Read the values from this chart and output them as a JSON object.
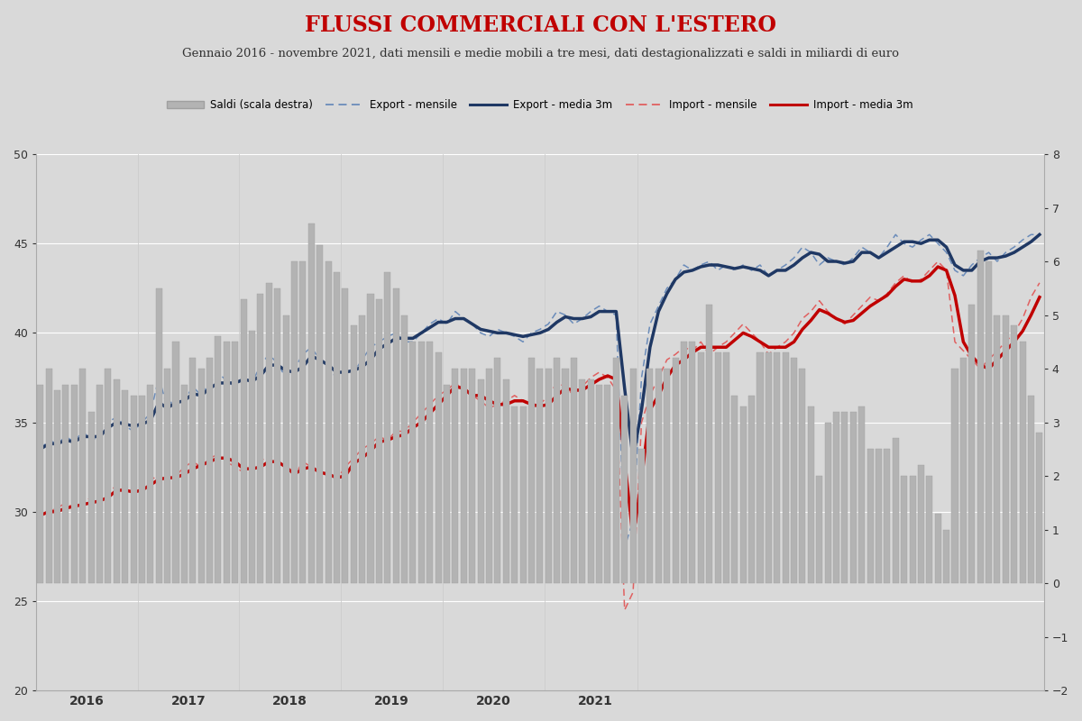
{
  "title": "FLUSSI COMMERCIALI CON L'ESTERO",
  "subtitle": "Gennaio 2016 - novembre 2021, dati mensili e medie mobili a tre mesi, dati destagionalizzati e saldi in miliardi di euro",
  "background_color": "#d9d9d9",
  "plot_bg_color": "#d9d9d9",
  "left_ylim": [
    20,
    50
  ],
  "right_ylim": [
    -2,
    8
  ],
  "left_yticks": [
    20,
    25,
    30,
    35,
    40,
    45,
    50
  ],
  "right_yticks": [
    -2,
    -1,
    0,
    1,
    2,
    3,
    4,
    5,
    6,
    7,
    8
  ],
  "export_mensile": [
    33.5,
    34.0,
    33.8,
    34.2,
    33.9,
    34.5,
    34.0,
    34.2,
    35.0,
    35.3,
    34.8,
    34.5,
    35.0,
    35.5,
    37.5,
    35.8,
    36.5,
    36.2,
    37.0,
    36.5,
    37.2,
    37.8,
    37.3,
    37.0,
    37.5,
    37.2,
    38.2,
    38.8,
    38.3,
    37.5,
    38.0,
    38.8,
    39.2,
    38.5,
    38.0,
    37.5,
    38.0,
    37.8,
    38.5,
    39.2,
    39.5,
    39.8,
    40.0,
    39.5,
    39.5,
    40.0,
    40.5,
    40.8,
    40.5,
    41.2,
    40.8,
    40.5,
    40.0,
    39.8,
    40.2,
    40.0,
    39.8,
    39.5,
    40.0,
    40.2,
    40.5,
    41.2,
    41.0,
    40.5,
    40.8,
    41.2,
    41.5,
    41.2,
    41.0,
    28.0,
    29.5,
    37.5,
    40.5,
    41.5,
    42.5,
    43.0,
    43.8,
    43.5,
    43.8,
    44.0,
    43.5,
    43.8,
    43.5,
    43.8,
    43.5,
    43.8,
    43.2,
    43.5,
    43.8,
    44.2,
    44.8,
    44.5,
    43.8,
    44.2,
    44.0,
    43.8,
    44.2,
    44.8,
    44.5,
    44.2,
    44.8,
    45.5,
    45.0,
    44.8,
    45.2,
    45.5,
    45.0,
    44.5,
    43.5,
    43.2,
    43.8,
    44.2,
    44.5,
    44.0,
    44.5,
    44.8,
    45.2,
    45.5,
    45.5
  ],
  "export_media3m": [
    33.5,
    33.8,
    33.8,
    34.0,
    33.9,
    34.2,
    34.2,
    34.2,
    34.7,
    35.0,
    34.9,
    34.8,
    34.9,
    35.1,
    36.1,
    35.8,
    36.1,
    36.2,
    36.6,
    36.5,
    36.9,
    37.2,
    37.2,
    37.2,
    37.4,
    37.3,
    37.6,
    38.2,
    38.2,
    37.9,
    37.8,
    38.1,
    38.7,
    38.5,
    38.2,
    37.8,
    37.8,
    37.9,
    38.1,
    38.5,
    39.1,
    39.4,
    39.7,
    39.7,
    39.7,
    40.0,
    40.3,
    40.6,
    40.6,
    40.8,
    40.8,
    40.5,
    40.2,
    40.1,
    40.0,
    40.0,
    39.9,
    39.8,
    39.9,
    40.0,
    40.2,
    40.6,
    40.9,
    40.8,
    40.8,
    40.9,
    41.2,
    41.2,
    41.2,
    36.9,
    33.0,
    35.7,
    39.2,
    41.2,
    42.2,
    43.0,
    43.4,
    43.5,
    43.7,
    43.8,
    43.8,
    43.7,
    43.6,
    43.7,
    43.6,
    43.5,
    43.2,
    43.5,
    43.5,
    43.8,
    44.2,
    44.5,
    44.4,
    44.0,
    44.0,
    43.9,
    44.0,
    44.5,
    44.5,
    44.2,
    44.5,
    44.8,
    45.1,
    45.1,
    45.0,
    45.2,
    45.2,
    44.8,
    43.8,
    43.5,
    43.5,
    44.0,
    44.2,
    44.2,
    44.3,
    44.5,
    44.8,
    45.1,
    45.5
  ],
  "import_mensile": [
    29.8,
    30.0,
    30.2,
    30.5,
    30.2,
    30.5,
    30.8,
    30.5,
    31.0,
    31.5,
    31.2,
    31.0,
    31.5,
    31.8,
    32.0,
    31.8,
    32.0,
    32.5,
    32.8,
    32.5,
    33.0,
    33.2,
    32.8,
    32.5,
    32.2,
    32.5,
    32.8,
    33.2,
    32.8,
    32.5,
    32.0,
    32.8,
    32.5,
    32.2,
    32.0,
    31.8,
    32.5,
    33.0,
    33.5,
    33.8,
    34.2,
    34.0,
    34.5,
    34.5,
    35.0,
    35.5,
    36.0,
    36.5,
    36.8,
    37.2,
    36.8,
    36.5,
    36.2,
    35.8,
    36.0,
    36.2,
    36.5,
    36.2,
    35.8,
    36.0,
    36.5,
    37.2,
    37.0,
    36.5,
    37.0,
    37.5,
    37.8,
    37.5,
    36.8,
    24.5,
    25.5,
    35.0,
    36.5,
    37.5,
    38.5,
    38.8,
    39.2,
    39.0,
    39.5,
    38.8,
    39.2,
    39.5,
    40.0,
    40.5,
    40.0,
    39.5,
    38.8,
    39.2,
    39.5,
    40.0,
    40.8,
    41.2,
    41.8,
    41.2,
    40.8,
    40.5,
    41.0,
    41.5,
    42.0,
    41.8,
    42.2,
    42.8,
    43.2,
    42.8,
    43.0,
    43.5,
    44.0,
    43.5,
    39.5,
    39.0,
    38.5,
    38.0,
    38.5,
    39.0,
    39.5,
    40.0,
    40.8,
    42.0,
    42.8
  ],
  "import_media3m": [
    29.8,
    30.0,
    30.0,
    30.2,
    30.3,
    30.4,
    30.5,
    30.6,
    30.8,
    31.2,
    31.2,
    31.1,
    31.2,
    31.5,
    31.8,
    31.9,
    31.9,
    32.1,
    32.4,
    32.6,
    32.8,
    33.0,
    33.0,
    32.8,
    32.4,
    32.4,
    32.5,
    32.8,
    32.8,
    32.5,
    32.1,
    32.4,
    32.5,
    32.2,
    32.1,
    31.9,
    32.0,
    32.7,
    33.0,
    33.4,
    33.9,
    34.0,
    34.2,
    34.3,
    34.7,
    35.0,
    35.5,
    36.0,
    36.5,
    37.0,
    36.9,
    36.5,
    36.5,
    36.2,
    36.0,
    36.0,
    36.2,
    36.2,
    36.0,
    35.9,
    36.0,
    36.5,
    36.9,
    36.8,
    36.8,
    37.1,
    37.4,
    37.6,
    37.4,
    32.9,
    28.5,
    31.8,
    35.7,
    36.5,
    37.5,
    38.2,
    38.5,
    38.9,
    39.2,
    39.2,
    39.2,
    39.2,
    39.6,
    40.0,
    39.8,
    39.5,
    39.2,
    39.2,
    39.2,
    39.5,
    40.2,
    40.7,
    41.3,
    41.1,
    40.8,
    40.6,
    40.7,
    41.1,
    41.5,
    41.8,
    42.1,
    42.6,
    43.0,
    42.9,
    42.9,
    43.2,
    43.7,
    43.5,
    42.1,
    39.5,
    38.7,
    38.2,
    38.0,
    38.5,
    39.0,
    39.5,
    40.1,
    41.0,
    42.0
  ],
  "saldi": [
    3.7,
    4.0,
    3.6,
    3.7,
    3.7,
    4.0,
    3.2,
    3.7,
    4.0,
    3.8,
    3.6,
    3.5,
    3.5,
    3.7,
    5.5,
    4.0,
    4.5,
    3.7,
    4.2,
    4.0,
    4.2,
    4.6,
    4.5,
    4.5,
    5.3,
    4.7,
    5.4,
    5.6,
    5.5,
    5.0,
    6.0,
    6.0,
    6.7,
    6.3,
    6.0,
    5.8,
    5.5,
    4.8,
    5.0,
    5.4,
    5.3,
    5.8,
    5.5,
    5.0,
    4.5,
    4.5,
    4.5,
    4.3,
    3.7,
    4.0,
    4.0,
    4.0,
    3.8,
    4.0,
    4.2,
    3.8,
    3.3,
    3.3,
    4.2,
    4.0,
    4.0,
    4.2,
    4.0,
    4.2,
    3.8,
    3.8,
    3.7,
    3.7,
    4.2,
    3.5,
    4.0,
    2.5,
    4.0,
    4.0,
    4.0,
    4.2,
    4.5,
    4.5,
    4.3,
    5.2,
    4.3,
    4.3,
    3.5,
    3.3,
    3.5,
    4.3,
    4.3,
    4.3,
    4.3,
    4.2,
    4.0,
    3.3,
    2.0,
    3.0,
    3.2,
    3.2,
    3.2,
    3.3,
    2.5,
    2.5,
    2.5,
    2.7,
    2.0,
    2.0,
    2.2,
    2.0,
    1.3,
    1.0,
    4.0,
    4.2,
    5.2,
    6.2,
    6.0,
    5.0,
    5.0,
    4.8,
    4.5,
    3.5,
    2.8
  ],
  "bar_color": "#b3b3b3",
  "bar_edge_color": "#a0a0a0",
  "export_mensile_color": "#6b8cba",
  "export_media3m_color": "#1f3864",
  "import_mensile_color": "#e06060",
  "import_media3m_color": "#c00000",
  "title_color": "#c00000",
  "grid_color": "#ffffff",
  "legend_items": [
    "Saldi (scala destra)",
    "Export - mensile",
    "Export - media 3m",
    "Import - mensile",
    "Import - media 3m"
  ]
}
